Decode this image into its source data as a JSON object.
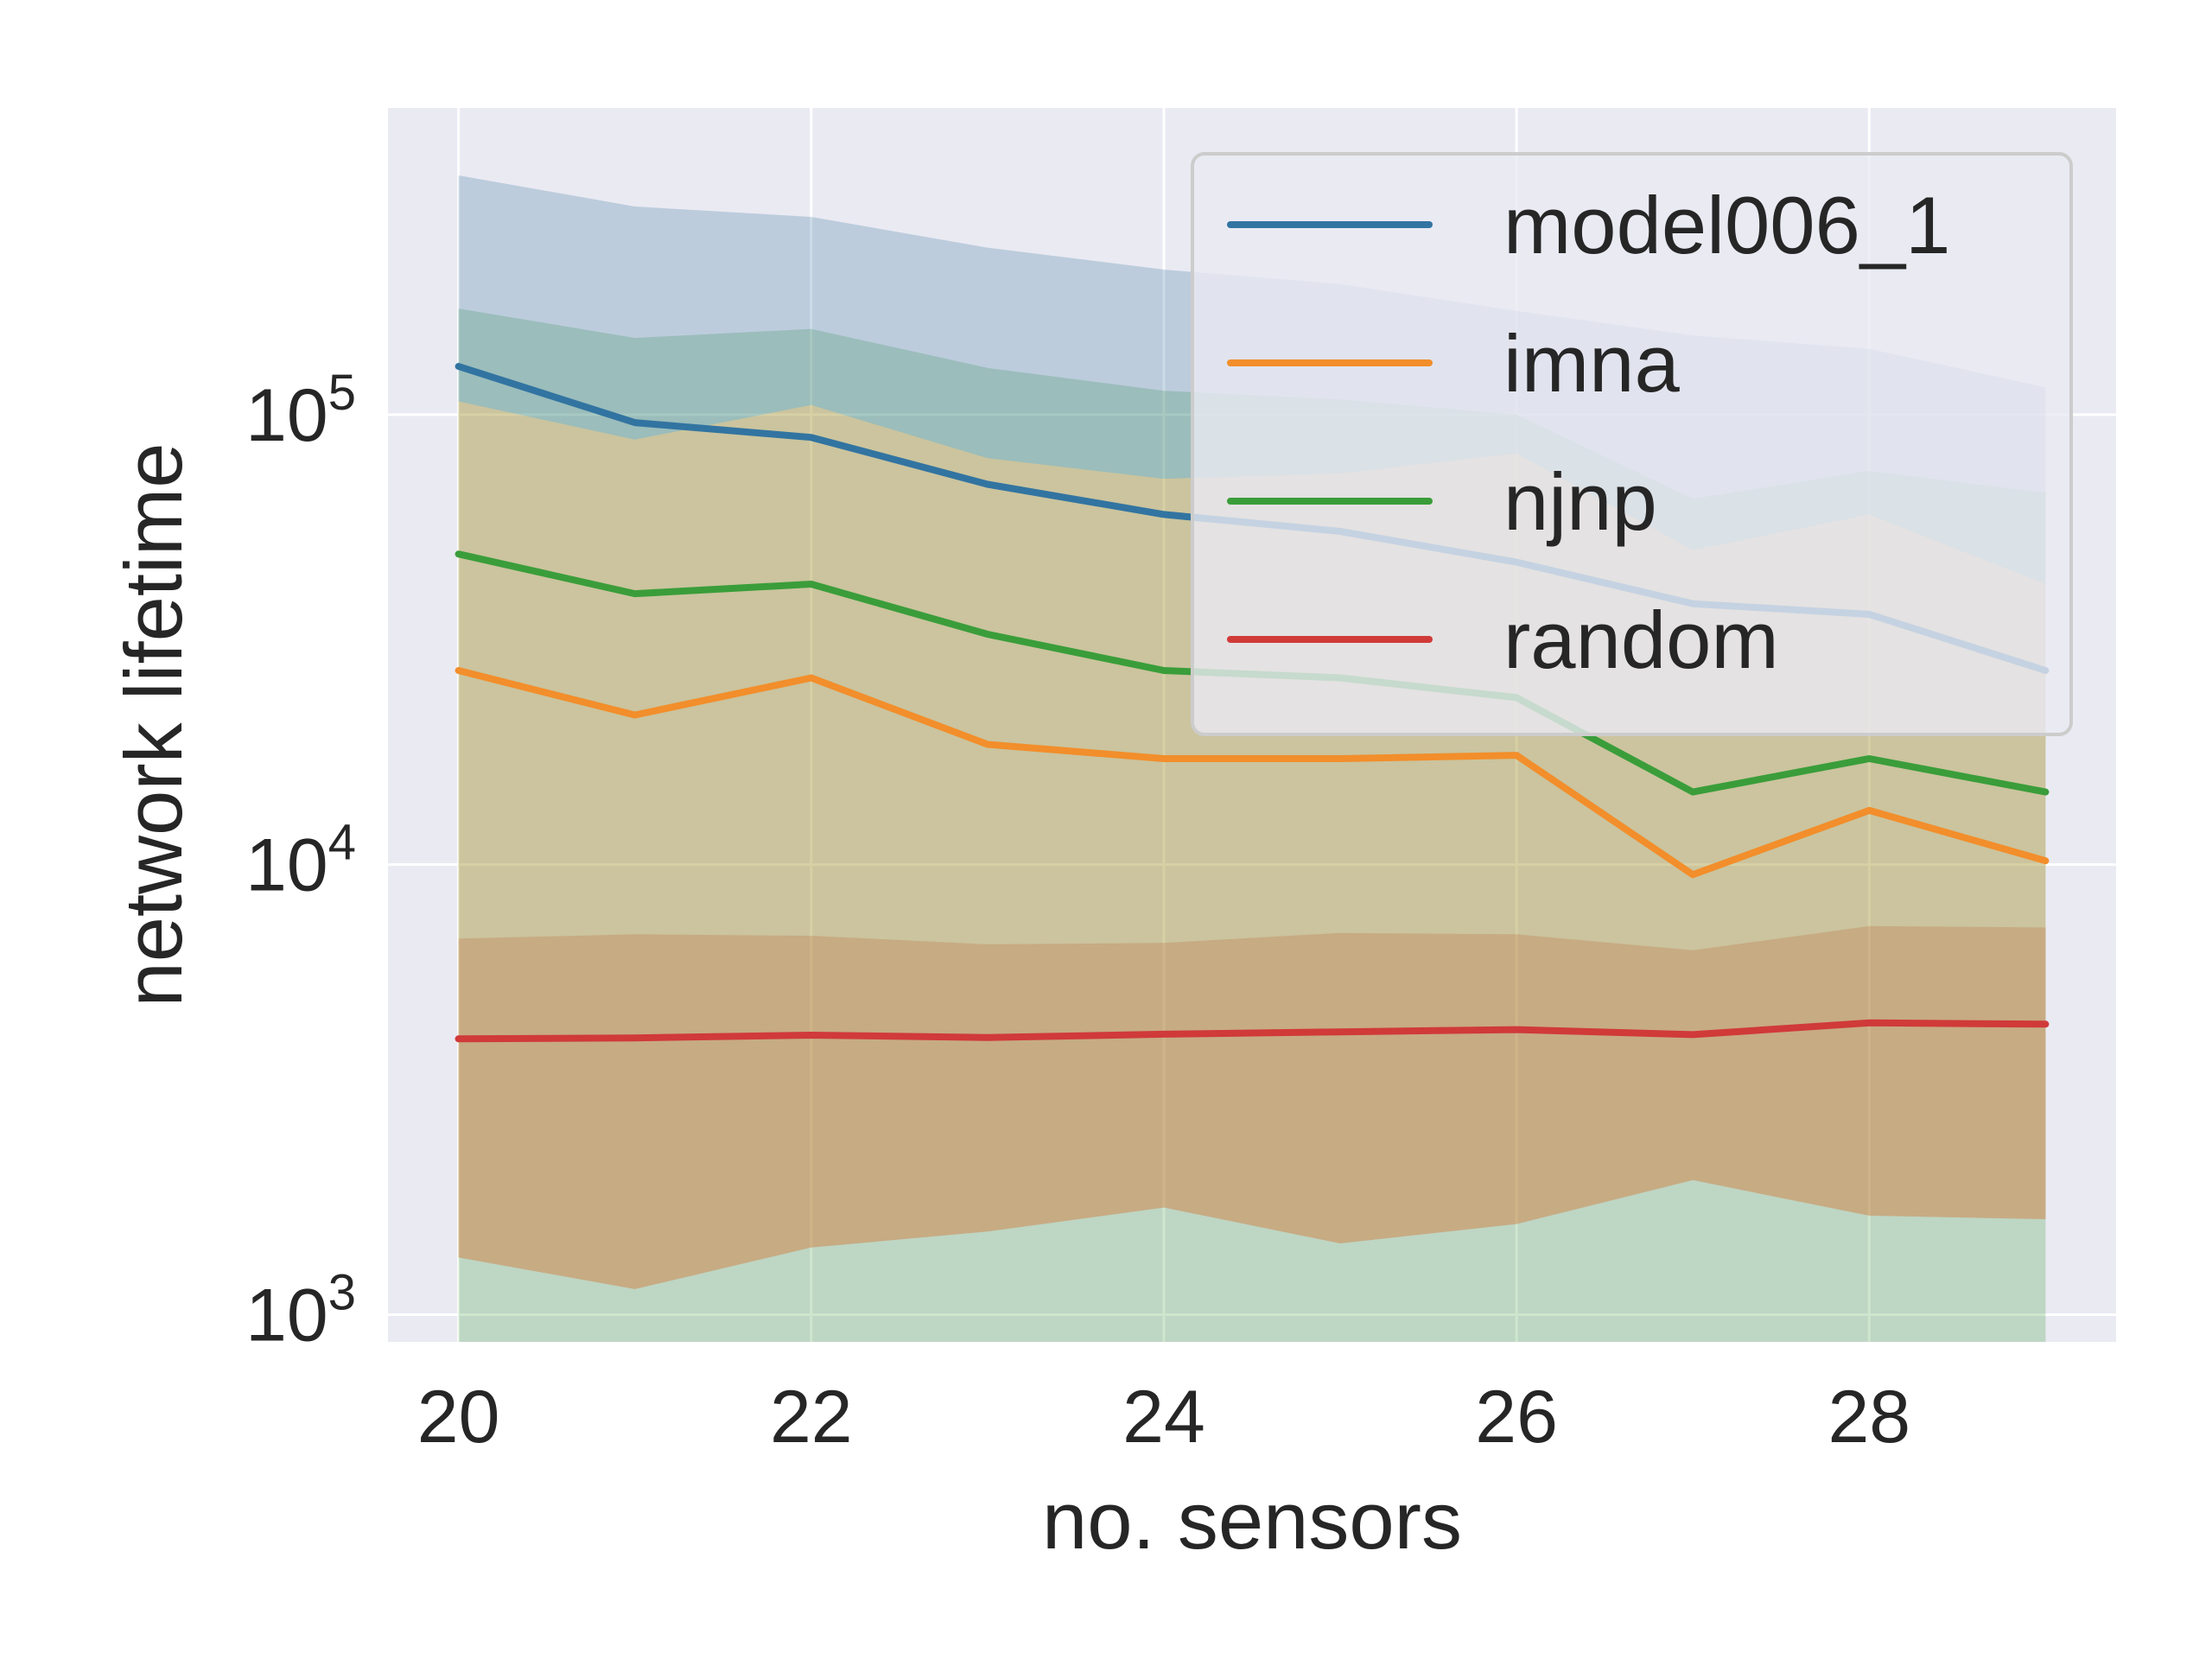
{
  "chart_data": {
    "type": "line",
    "title": "",
    "xlabel": "no. sensors",
    "ylabel": "network lifetime",
    "xlim": [
      19.6,
      29.4
    ],
    "xticks": [
      20,
      22,
      24,
      26,
      28
    ],
    "ylim": [
      870,
      480000
    ],
    "yscale": "log",
    "yticks": [
      {
        "value": 1000,
        "base": "10",
        "exp": "3"
      },
      {
        "value": 10000,
        "base": "10",
        "exp": "4"
      },
      {
        "value": 100000,
        "base": "10",
        "exp": "5"
      }
    ],
    "grid": true,
    "legend_position": "top-right",
    "x": [
      20,
      21,
      22,
      23,
      24,
      25,
      26,
      27,
      28,
      29
    ],
    "series": [
      {
        "name": "model006_1",
        "color": "#3274a1",
        "values": [
          128000,
          96000,
          89000,
          70000,
          60000,
          55000,
          47000,
          38000,
          36000,
          27000
        ],
        "band_upper": [
          340000,
          290000,
          275000,
          235000,
          210000,
          195000,
          170000,
          150000,
          140000,
          115000
        ],
        "band_lower": [
          107000,
          88000,
          105000,
          80000,
          72000,
          74000,
          82000,
          50000,
          60000,
          42000
        ]
      },
      {
        "name": "imna",
        "color": "#f28e2b",
        "values": [
          27000,
          21500,
          26000,
          18500,
          17200,
          17200,
          17500,
          9500,
          13200,
          10200
        ],
        "band_upper": [
          107000,
          88000,
          105000,
          80000,
          72000,
          74000,
          82000,
          50000,
          60000,
          42000
        ],
        "band_lower": [
          1340,
          1140,
          1410,
          1530,
          1730,
          1440,
          1590,
          1990,
          1660,
          1630
        ]
      },
      {
        "name": "njnp",
        "color": "#3a9d3a",
        "values": [
          49000,
          40000,
          42000,
          32500,
          27000,
          26000,
          23500,
          14500,
          17200,
          14500
        ],
        "band_upper": [
          172000,
          148000,
          155000,
          127000,
          113000,
          108000,
          100000,
          65000,
          75000,
          67000
        ],
        "band_lower": [
          870,
          870,
          870,
          870,
          870,
          870,
          870,
          870,
          870,
          870
        ]
      },
      {
        "name": "random",
        "color": "#d03a39",
        "values": [
          4100,
          4120,
          4180,
          4130,
          4200,
          4250,
          4300,
          4190,
          4450,
          4420
        ],
        "band_upper": [
          6850,
          7000,
          6950,
          6650,
          6700,
          7050,
          7000,
          6450,
          7300,
          7250
        ],
        "band_lower": [
          1340,
          1140,
          1410,
          1530,
          1730,
          1440,
          1590,
          1990,
          1660,
          1630
        ]
      }
    ]
  }
}
